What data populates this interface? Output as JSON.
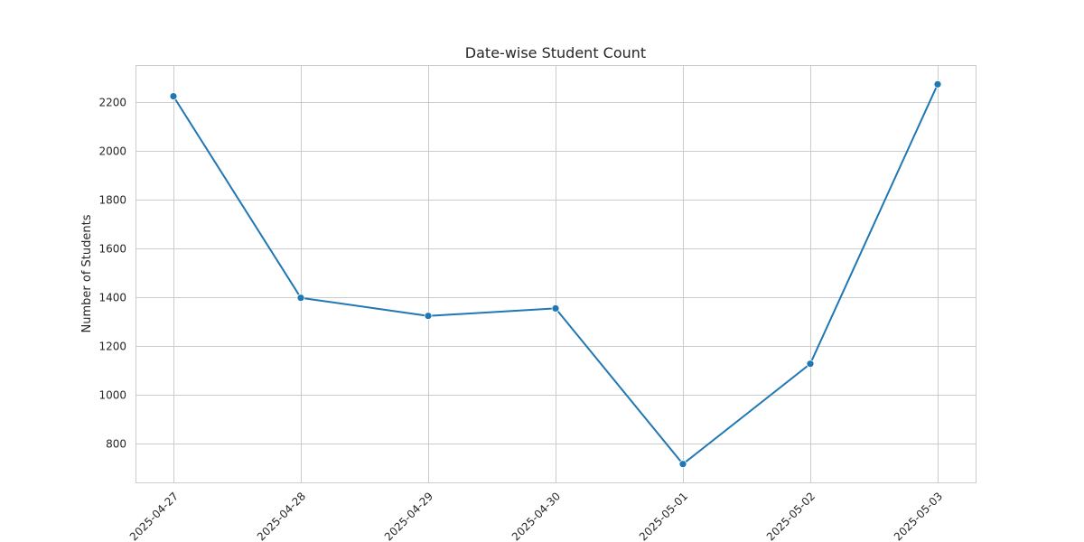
{
  "chart_data": {
    "type": "line",
    "title": "Date-wise Student Count",
    "xlabel": "",
    "ylabel": "Number of Students",
    "categories": [
      "2025-04-27",
      "2025-04-28",
      "2025-04-29",
      "2025-04-30",
      "2025-05-01",
      "2025-05-02",
      "2025-05-03"
    ],
    "series": [
      {
        "values": [
          2222,
          1396,
          1322,
          1353,
          715,
          1126,
          2271
        ],
        "color": "#1f77b4"
      }
    ],
    "ylim": [
      640,
      2350
    ],
    "yticks": [
      800,
      1000,
      1200,
      1400,
      1600,
      1800,
      2000,
      2200
    ],
    "grid": true,
    "marker": "circle"
  }
}
